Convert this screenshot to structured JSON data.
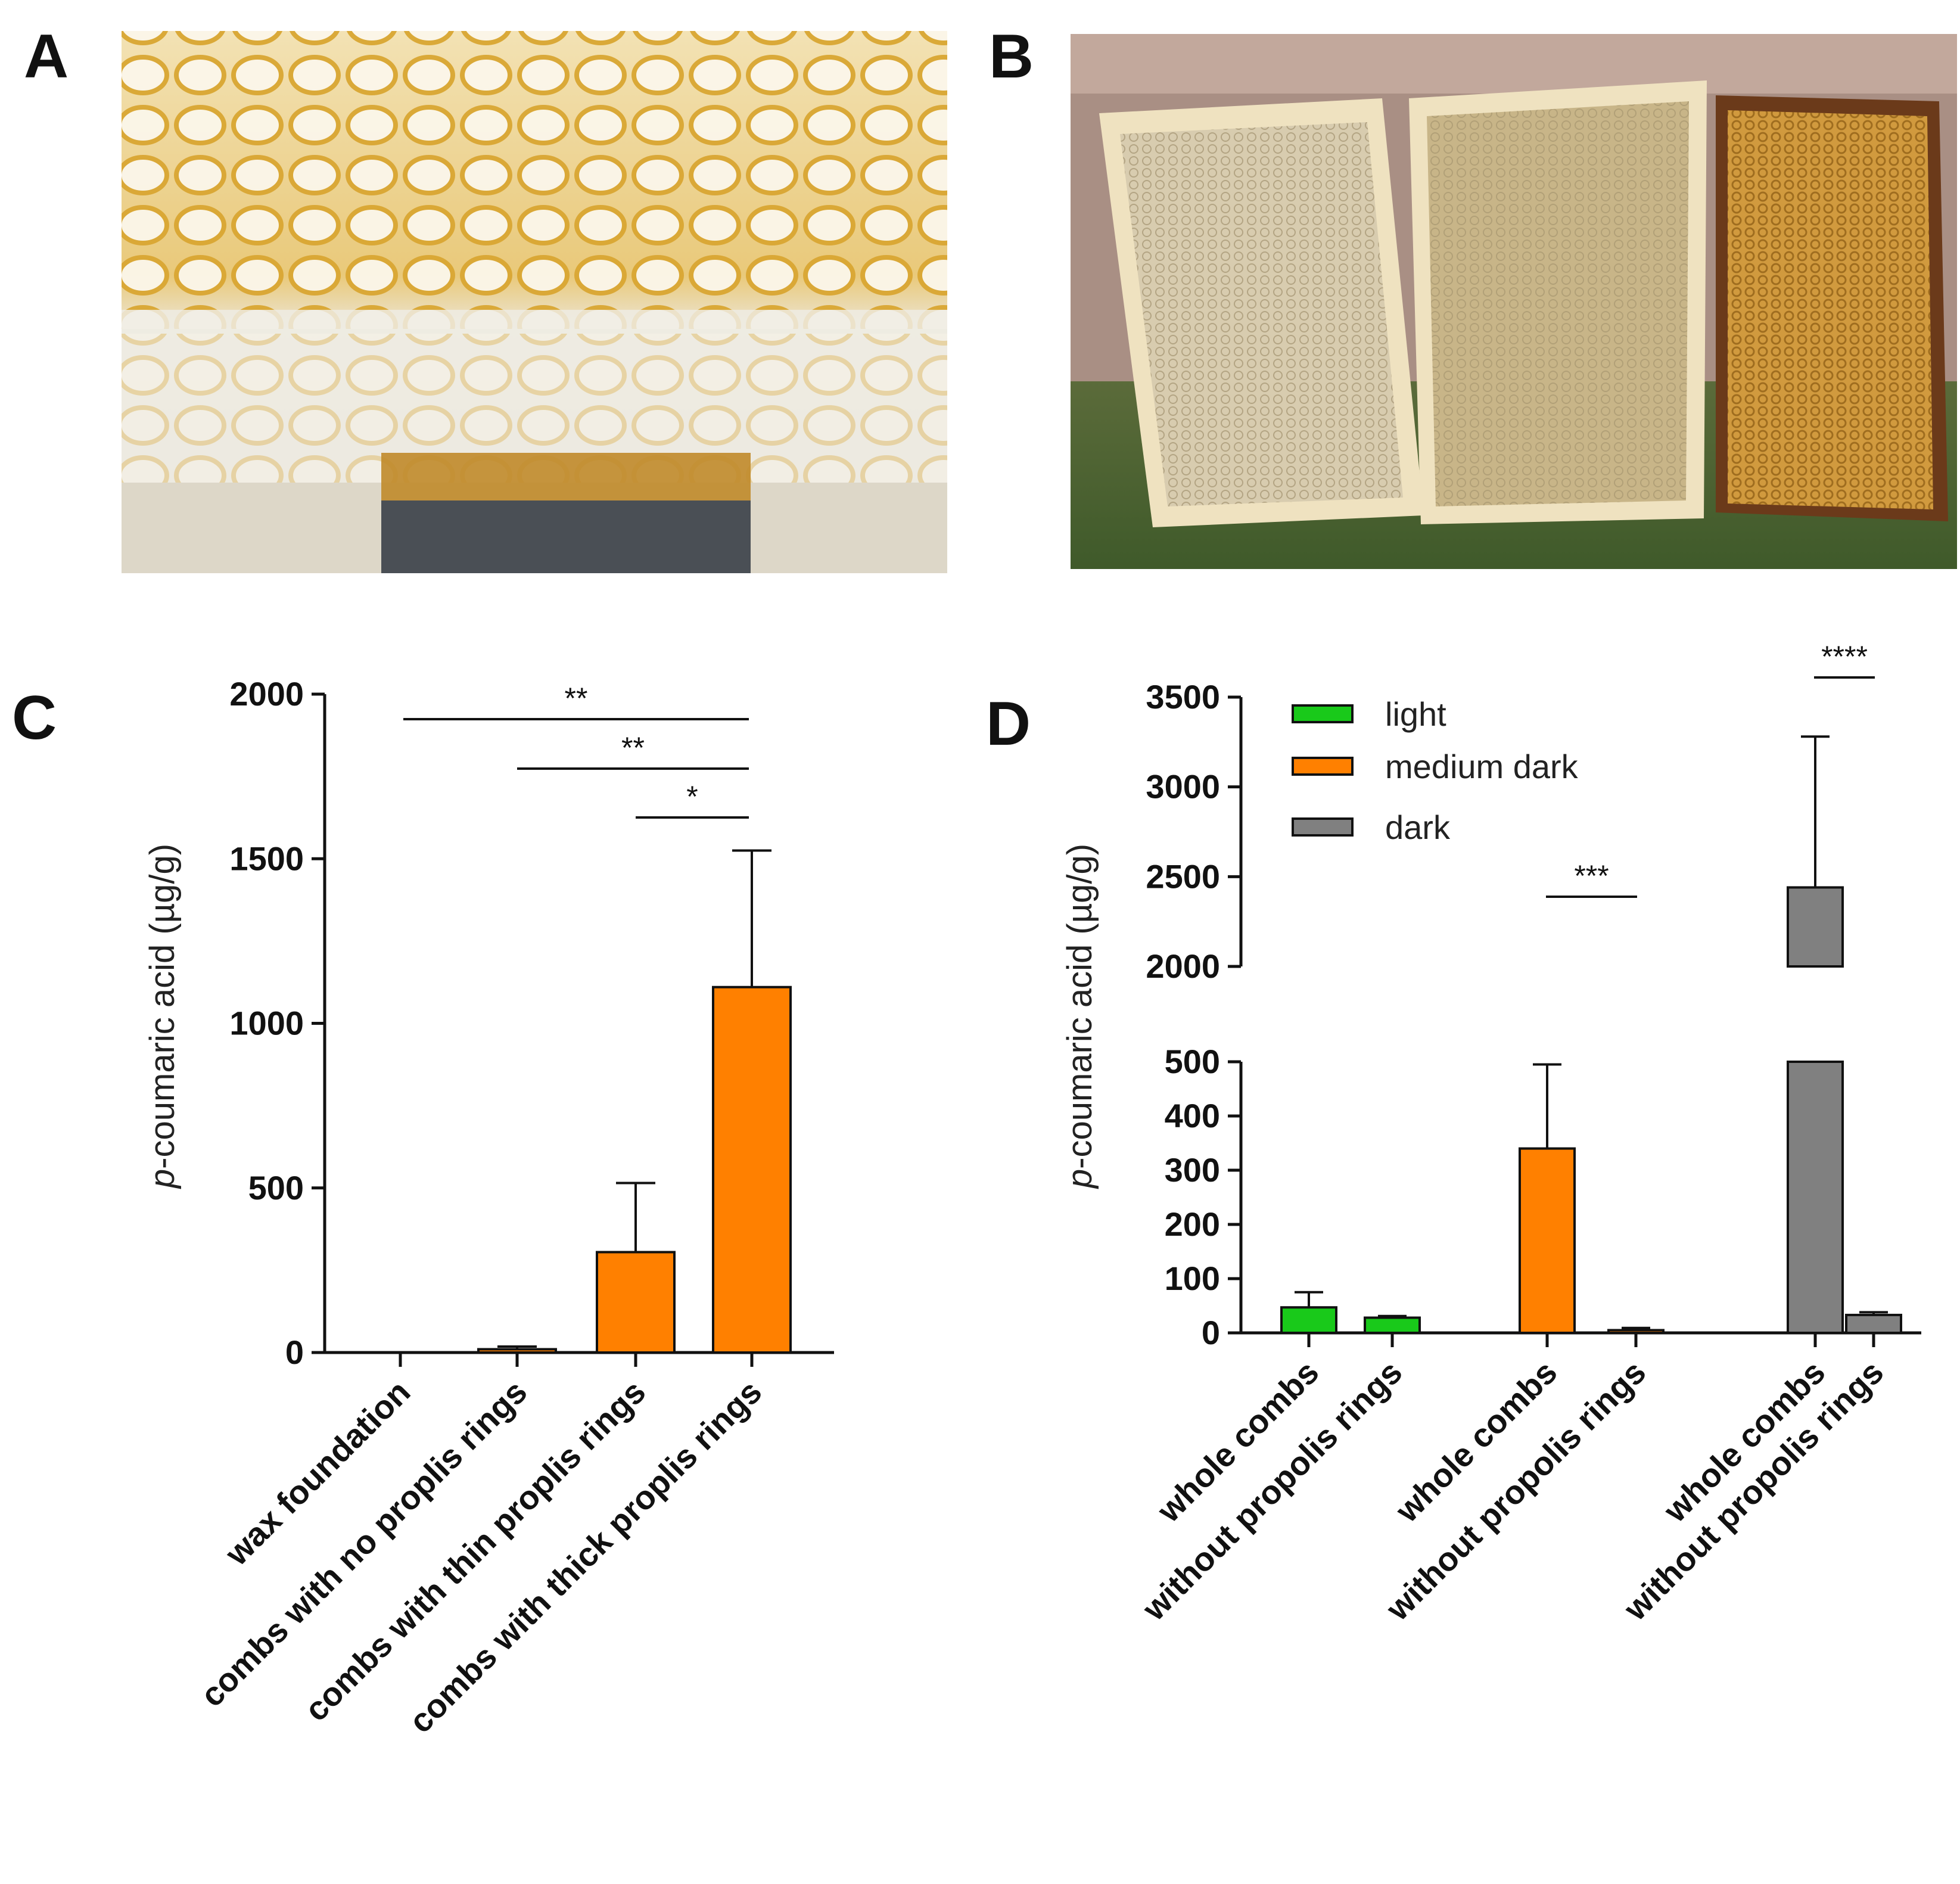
{
  "panels": {
    "A": {
      "letter": "A"
    },
    "B": {
      "letter": "B"
    },
    "C": {
      "letter": "C"
    },
    "D": {
      "letter": "D"
    }
  },
  "colors": {
    "light": "#19c91a",
    "medium_dark": "#ff8000",
    "dark": "#808080",
    "axis": "#111111"
  },
  "chart_data": [
    {
      "panel": "C",
      "type": "bar",
      "ylabel_italic": "p",
      "ylabel_rest": "-coumaric acid (µg/g)",
      "ylim": [
        0,
        2000
      ],
      "yticks": [
        0,
        500,
        1000,
        1500,
        2000
      ],
      "categories": [
        "wax foundation",
        "combs with no proplis rings",
        "combs with thin proplis rings",
        "combs with thick proplis rings"
      ],
      "values": [
        0,
        10,
        305,
        1110
      ],
      "errors": [
        0,
        8,
        210,
        415
      ],
      "bar_color": "#ff8000",
      "significance": [
        {
          "from": 0,
          "to": 3,
          "label": "**"
        },
        {
          "from": 1,
          "to": 3,
          "label": "**"
        },
        {
          "from": 2,
          "to": 3,
          "label": "*"
        }
      ]
    },
    {
      "panel": "D",
      "type": "bar",
      "ylabel_italic": "p",
      "ylabel_rest": "-coumaric acid (µg/g)",
      "axis_break": {
        "lower_range": [
          0,
          500
        ],
        "upper_range": [
          2000,
          3500
        ]
      },
      "yticks_lower": [
        0,
        100,
        200,
        300,
        400,
        500
      ],
      "yticks_upper": [
        2000,
        2500,
        3000,
        3500
      ],
      "categories": [
        "whole combs",
        "without propolis rings",
        "whole combs",
        "without propolis rings",
        "whole combs",
        "without propolis rings"
      ],
      "groups": [
        "light",
        "light",
        "medium dark",
        "medium dark",
        "dark",
        "dark"
      ],
      "values": [
        47,
        28,
        340,
        5,
        2440,
        33
      ],
      "errors": [
        28,
        3,
        155,
        4,
        840,
        5
      ],
      "legend": [
        {
          "name": "light",
          "color": "#19c91a"
        },
        {
          "name": "medium dark",
          "color": "#ff8000"
        },
        {
          "name": "dark",
          "color": "#808080"
        }
      ],
      "legend_position": "top-left",
      "significance": [
        {
          "from": 2,
          "to": 3,
          "label": "***"
        },
        {
          "from": 4,
          "to": 5,
          "label": "****"
        }
      ]
    }
  ]
}
